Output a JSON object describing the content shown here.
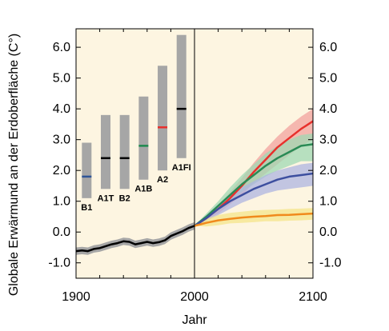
{
  "chart_data": {
    "type": "line",
    "xlabel": "Jahr",
    "ylabel": "Globale Erwärmund an der Erdoberfläche (C°)",
    "xlim": [
      1900,
      2100
    ],
    "ylim": [
      -1.5,
      6.6
    ],
    "x_ticks": [
      "1900",
      "2000",
      "2100"
    ],
    "y_ticks": [
      "-1.0",
      "0.0",
      "1.0",
      "2.0",
      "3.0",
      "4.0",
      "5.0",
      "6.0"
    ],
    "y_axis_right": true,
    "background_color": "#fdf5e1",
    "marker_line_x": 2000,
    "historical": {
      "x": [
        1900,
        1905,
        1910,
        1915,
        1920,
        1925,
        1930,
        1935,
        1940,
        1945,
        1950,
        1955,
        1960,
        1965,
        1970,
        1975,
        1980,
        1985,
        1990,
        1995,
        2000
      ],
      "y": [
        -0.62,
        -0.6,
        -0.62,
        -0.55,
        -0.52,
        -0.46,
        -0.4,
        -0.36,
        -0.3,
        -0.32,
        -0.4,
        -0.36,
        -0.32,
        -0.36,
        -0.33,
        -0.27,
        -0.13,
        -0.05,
        0.03,
        0.13,
        0.2
      ],
      "color": "#000000",
      "band_color": "#a6a6a6"
    },
    "series": [
      {
        "x": [
          2000,
          2010,
          2020,
          2030,
          2040,
          2050,
          2060,
          2070,
          2080,
          2090,
          2100
        ],
        "y": [
          0.2,
          0.45,
          0.75,
          1.1,
          1.5,
          1.95,
          2.35,
          2.75,
          3.05,
          3.35,
          3.6
        ],
        "lower": [
          0.2,
          0.4,
          0.6,
          0.9,
          1.2,
          1.6,
          1.9,
          2.2,
          2.5,
          2.8,
          3.0
        ],
        "upper": [
          0.2,
          0.5,
          0.85,
          1.3,
          1.75,
          2.25,
          2.7,
          3.1,
          3.45,
          3.75,
          4.0
        ],
        "color": "#e8302c",
        "band_color": "#f2a29e"
      },
      {
        "x": [
          2000,
          2010,
          2020,
          2030,
          2040,
          2050,
          2060,
          2070,
          2080,
          2090,
          2100
        ],
        "y": [
          0.2,
          0.5,
          0.85,
          1.2,
          1.55,
          1.85,
          2.15,
          2.4,
          2.6,
          2.8,
          2.85
        ],
        "lower": [
          0.2,
          0.4,
          0.7,
          1.0,
          1.3,
          1.55,
          1.8,
          2.0,
          2.15,
          2.3,
          2.3
        ],
        "upper": [
          0.2,
          0.6,
          1.0,
          1.45,
          1.85,
          2.2,
          2.55,
          2.8,
          3.0,
          3.15,
          3.2
        ],
        "color": "#2a8a55",
        "band_color": "#9fd8b3"
      },
      {
        "x": [
          2000,
          2010,
          2020,
          2030,
          2040,
          2050,
          2060,
          2070,
          2080,
          2090,
          2100
        ],
        "y": [
          0.2,
          0.45,
          0.75,
          1.0,
          1.2,
          1.4,
          1.55,
          1.7,
          1.8,
          1.85,
          1.9
        ],
        "lower": [
          0.2,
          0.35,
          0.55,
          0.75,
          0.95,
          1.1,
          1.25,
          1.35,
          1.4,
          1.45,
          1.5
        ],
        "upper": [
          0.2,
          0.55,
          0.9,
          1.2,
          1.45,
          1.65,
          1.85,
          2.0,
          2.1,
          2.2,
          2.25
        ],
        "color": "#3d4f9f",
        "band_color": "#adb4e0"
      },
      {
        "x": [
          2000,
          2010,
          2020,
          2030,
          2040,
          2050,
          2060,
          2070,
          2080,
          2090,
          2100
        ],
        "y": [
          0.2,
          0.3,
          0.38,
          0.43,
          0.47,
          0.5,
          0.52,
          0.55,
          0.56,
          0.58,
          0.6
        ],
        "lower": [
          0.2,
          0.18,
          0.22,
          0.28,
          0.3,
          0.32,
          0.35,
          0.35,
          0.37,
          0.38,
          0.4
        ],
        "upper": [
          0.2,
          0.42,
          0.55,
          0.62,
          0.66,
          0.7,
          0.72,
          0.73,
          0.75,
          0.76,
          0.78
        ],
        "color": "#f08a1c",
        "band_color": "#f4e48a"
      }
    ],
    "scenario_bars": [
      {
        "label": "B1",
        "low": 1.1,
        "high": 2.9,
        "best": 1.8,
        "color": "#2f5597",
        "x_year": 1909
      },
      {
        "label": "A1T",
        "low": 1.4,
        "high": 3.8,
        "best": 2.4,
        "color": "#000000",
        "x_year": 1925
      },
      {
        "label": "B2",
        "low": 1.4,
        "high": 3.8,
        "best": 2.4,
        "color": "#000000",
        "x_year": 1941
      },
      {
        "label": "A1B",
        "low": 1.7,
        "high": 4.4,
        "best": 2.8,
        "color": "#1e8a4e",
        "x_year": 1957
      },
      {
        "label": "A2",
        "low": 2.0,
        "high": 5.4,
        "best": 3.4,
        "color": "#e8302c",
        "x_year": 1973
      },
      {
        "label": "A1FI",
        "low": 2.4,
        "high": 6.4,
        "best": 4.0,
        "color": "#000000",
        "x_year": 1989
      }
    ]
  }
}
